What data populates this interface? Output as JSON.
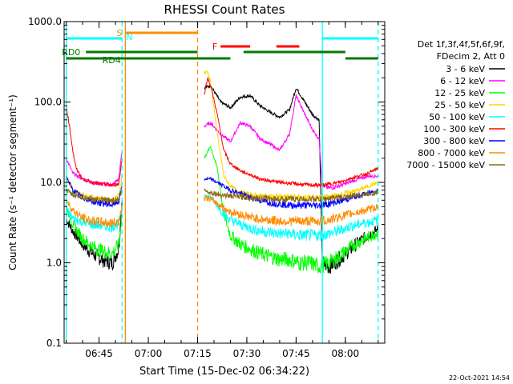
{
  "chart_data": {
    "type": "line",
    "title": "RHESSI Count Rates",
    "xlabel": "Start Time (15-Dec-02 06:34:22)",
    "ylabel": "Count Rate (s⁻¹ detector segment⁻¹)",
    "yscale": "log",
    "ylim": [
      0.1,
      1000.0
    ],
    "xlim": [
      "06:34:22",
      "08:12:00"
    ],
    "x_ticks": [
      "06:45",
      "07:00",
      "07:15",
      "07:30",
      "07:45",
      "08:00"
    ],
    "y_ticks": [
      "0.1",
      "1.0",
      "10.0",
      "100.0",
      "1000.0"
    ],
    "legend_header": [
      "Det 1f,3f,4f,5f,6f,9f,",
      "FDecim 2, Att 0"
    ],
    "legend_position": "right",
    "series": [
      {
        "name": "3 - 6 keV",
        "color": "#000000",
        "x": [
          "06:35",
          "06:37",
          "06:40",
          "06:43",
          "06:46",
          "06:49",
          "06:51",
          "06:52",
          "07:17",
          "07:19",
          "07:22",
          "07:25",
          "07:28",
          "07:31",
          "07:34",
          "07:37",
          "07:40",
          "07:43",
          "07:45",
          "07:47",
          "07:50",
          "07:52",
          "07:53",
          "07:55",
          "07:58",
          "08:01",
          "08:04",
          "08:07",
          "08:10"
        ],
        "y": [
          3.5,
          2.5,
          1.7,
          1.3,
          1.1,
          1.0,
          1.5,
          6.0,
          150,
          160,
          100,
          85,
          115,
          120,
          90,
          75,
          65,
          80,
          150,
          110,
          70,
          60,
          1.0,
          0.9,
          1.1,
          1.4,
          1.8,
          2.2,
          2.6
        ]
      },
      {
        "name": "6 - 12 keV",
        "color": "#ff00ff",
        "x": [
          "06:35",
          "06:37",
          "06:40",
          "06:43",
          "06:46",
          "06:49",
          "06:51",
          "06:52",
          "07:17",
          "07:19",
          "07:22",
          "07:25",
          "07:28",
          "07:31",
          "07:34",
          "07:37",
          "07:40",
          "07:43",
          "07:45",
          "07:47",
          "07:50",
          "07:52",
          "07:53",
          "07:55",
          "07:58",
          "08:01",
          "08:04",
          "08:07",
          "08:10"
        ],
        "y": [
          20,
          13,
          11,
          10,
          9.5,
          9.3,
          11,
          25,
          50,
          55,
          40,
          32,
          55,
          50,
          35,
          30,
          25,
          40,
          120,
          80,
          45,
          35,
          9.0,
          8.5,
          9.0,
          10,
          11,
          12,
          12
        ]
      },
      {
        "name": "12 - 25 keV",
        "color": "#00ff00",
        "x": [
          "06:35",
          "06:37",
          "06:40",
          "06:43",
          "06:46",
          "06:49",
          "06:51",
          "06:52",
          "07:17",
          "07:19",
          "07:21",
          "07:23",
          "07:25",
          "07:28",
          "07:31",
          "07:34",
          "07:37",
          "07:40",
          "07:43",
          "07:46",
          "07:49",
          "07:52",
          "07:55",
          "07:58",
          "08:01",
          "08:04",
          "08:07",
          "08:10"
        ],
        "y": [
          5,
          3.0,
          2.0,
          1.6,
          1.4,
          1.3,
          1.7,
          4.0,
          20,
          28,
          15,
          4.0,
          2.2,
          1.7,
          1.5,
          1.3,
          1.2,
          1.1,
          1.1,
          1.0,
          1.0,
          0.9,
          1.0,
          1.2,
          1.5,
          1.8,
          2.1,
          2.4
        ]
      },
      {
        "name": "25 - 50 keV",
        "color": "#ffd700",
        "x": [
          "06:35",
          "06:37",
          "06:40",
          "06:43",
          "06:46",
          "06:49",
          "06:51",
          "06:52",
          "07:17",
          "07:18",
          "07:19",
          "07:21",
          "07:23",
          "07:25",
          "07:28",
          "07:31",
          "07:34",
          "07:37",
          "07:40",
          "07:43",
          "07:46",
          "07:49",
          "07:52",
          "07:55",
          "07:58",
          "08:01",
          "08:04",
          "08:07",
          "08:10"
        ],
        "y": [
          11,
          8,
          7,
          6.5,
          6.2,
          6.0,
          6.8,
          12,
          230,
          240,
          180,
          40,
          12,
          9,
          7.5,
          7,
          6.8,
          6.7,
          6.6,
          6.6,
          6.5,
          6.5,
          6.5,
          6.6,
          7,
          7.5,
          8,
          9,
          10
        ]
      },
      {
        "name": "50 - 100 keV",
        "color": "#00ffff",
        "x": [
          "06:35",
          "06:37",
          "06:40",
          "06:43",
          "06:46",
          "06:49",
          "06:51",
          "06:52",
          "07:17",
          "07:19",
          "07:21",
          "07:23",
          "07:25",
          "07:28",
          "07:31",
          "07:34",
          "07:37",
          "07:40",
          "07:43",
          "07:46",
          "07:49",
          "07:52",
          "07:55",
          "07:58",
          "08:01",
          "08:04",
          "08:07",
          "08:10"
        ],
        "y": [
          4.5,
          3.6,
          3.2,
          3.0,
          2.9,
          2.8,
          3.1,
          4.5,
          7,
          6.5,
          5.2,
          4.0,
          3.4,
          3.0,
          2.7,
          2.5,
          2.4,
          2.3,
          2.3,
          2.2,
          2.2,
          2.2,
          2.3,
          2.5,
          2.8,
          3.0,
          3.2,
          3.4
        ]
      },
      {
        "name": "100 - 300 keV",
        "color": "#ff0000",
        "x": [
          "06:35",
          "06:36",
          "06:37",
          "06:38",
          "06:40",
          "06:43",
          "06:46",
          "06:49",
          "06:51",
          "06:52",
          "07:17",
          "07:18",
          "07:19",
          "07:21",
          "07:23",
          "07:25",
          "07:28",
          "07:31",
          "07:34",
          "07:37",
          "07:40",
          "07:43",
          "07:46",
          "07:49",
          "07:52",
          "07:55",
          "07:58",
          "08:01",
          "08:04",
          "08:07",
          "08:10"
        ],
        "y": [
          90,
          50,
          25,
          15,
          11,
          10,
          9.5,
          9.3,
          9.5,
          20,
          120,
          200,
          160,
          70,
          25,
          17,
          14,
          12.5,
          11,
          10.5,
          10,
          9.8,
          9.5,
          9.3,
          9.2,
          9.5,
          10,
          11,
          12,
          13,
          15
        ]
      },
      {
        "name": "300 - 800 keV",
        "color": "#0000ff",
        "x": [
          "06:35",
          "06:37",
          "06:40",
          "06:43",
          "06:46",
          "06:49",
          "06:51",
          "06:52",
          "07:17",
          "07:19",
          "07:21",
          "07:23",
          "07:25",
          "07:28",
          "07:31",
          "07:34",
          "07:37",
          "07:40",
          "07:43",
          "07:46",
          "07:49",
          "07:52",
          "07:55",
          "07:58",
          "08:01",
          "08:04",
          "08:07",
          "08:10"
        ],
        "y": [
          12,
          8,
          6.5,
          5.8,
          5.5,
          5.3,
          5.8,
          9,
          11,
          11,
          10,
          9,
          8,
          7.3,
          6.5,
          6,
          5.6,
          5.4,
          5.2,
          5.2,
          5.2,
          5.2,
          5.4,
          5.8,
          6.3,
          6.8,
          7.4,
          8
        ]
      },
      {
        "name": "800 - 7000 keV",
        "color": "#ff8c00",
        "x": [
          "06:35",
          "06:37",
          "06:40",
          "06:43",
          "06:46",
          "06:49",
          "06:51",
          "06:52",
          "07:17",
          "07:19",
          "07:21",
          "07:23",
          "07:25",
          "07:28",
          "07:31",
          "07:34",
          "07:37",
          "07:40",
          "07:43",
          "07:46",
          "07:49",
          "07:52",
          "07:55",
          "07:58",
          "08:01",
          "08:04",
          "08:07",
          "08:10"
        ],
        "y": [
          6,
          4.5,
          3.6,
          3.3,
          3.2,
          3.1,
          3.3,
          5,
          6.5,
          6.2,
          5.5,
          4.8,
          4.3,
          4.0,
          3.7,
          3.5,
          3.4,
          3.3,
          3.3,
          3.3,
          3.3,
          3.3,
          3.4,
          3.7,
          4.0,
          4.3,
          4.6,
          5.0
        ]
      },
      {
        "name": "7000 - 15000 keV",
        "color": "#8b6914",
        "x": [
          "06:35",
          "06:37",
          "06:40",
          "06:43",
          "06:46",
          "06:49",
          "06:51",
          "06:52",
          "07:17",
          "07:19",
          "07:22",
          "07:25",
          "07:28",
          "07:31",
          "07:34",
          "07:37",
          "07:40",
          "07:43",
          "07:46",
          "07:49",
          "07:52",
          "07:55",
          "07:58",
          "08:01",
          "08:04",
          "08:07",
          "08:10"
        ],
        "y": [
          8,
          7,
          6.5,
          6.2,
          6.0,
          6.0,
          6.2,
          8,
          8,
          7.5,
          7.0,
          6.8,
          6.6,
          6.5,
          6.4,
          6.3,
          6.2,
          6.2,
          6.2,
          6.2,
          6.2,
          6.3,
          6.5,
          6.7,
          7.0,
          7.2,
          7.5
        ]
      }
    ],
    "vertical_markers": [
      {
        "time": "06:35:00",
        "color": "#00ffff",
        "style": "solid"
      },
      {
        "time": "06:52:00",
        "color": "#00ffff",
        "style": "dashed"
      },
      {
        "time": "06:53:00",
        "color": "#ff8c00",
        "style": "solid"
      },
      {
        "time": "07:15:00",
        "color": "#ff8c00",
        "style": "dashed"
      },
      {
        "time": "07:53:00",
        "color": "#00ffff",
        "style": "solid"
      },
      {
        "time": "08:10:00",
        "color": "#00ffff",
        "style": "dashed"
      }
    ],
    "flag_bars": [
      {
        "label": "S",
        "color": "#ff8c00",
        "label_side": "left",
        "level": 1,
        "segments": [
          [
            "06:53",
            "07:15"
          ]
        ]
      },
      {
        "label": "N",
        "color": "#00ffff",
        "label_side": "below-right",
        "level": 2,
        "segments": [
          [
            "06:35",
            "06:52"
          ],
          [
            "07:53",
            "08:10"
          ]
        ]
      },
      {
        "label": "F",
        "color": "#ff0000",
        "label_side": "left",
        "level": 3,
        "segments": [
          [
            "07:22",
            "07:31"
          ],
          [
            "07:39",
            "07:46"
          ]
        ]
      },
      {
        "label": "RD0",
        "color": "#007a00",
        "label_side": "above",
        "level": 4,
        "segments": [
          [
            "06:41",
            "07:15"
          ],
          [
            "07:29",
            "08:00"
          ]
        ]
      },
      {
        "label": "RD4",
        "color": "#007a00",
        "label_side": "below",
        "level": 5,
        "segments": [
          [
            "06:35",
            "07:15"
          ],
          [
            "07:15",
            "07:25"
          ],
          [
            "08:00",
            "08:10"
          ]
        ]
      }
    ]
  },
  "footer": {
    "timestamp": "22-Oct-2021 14:54"
  }
}
